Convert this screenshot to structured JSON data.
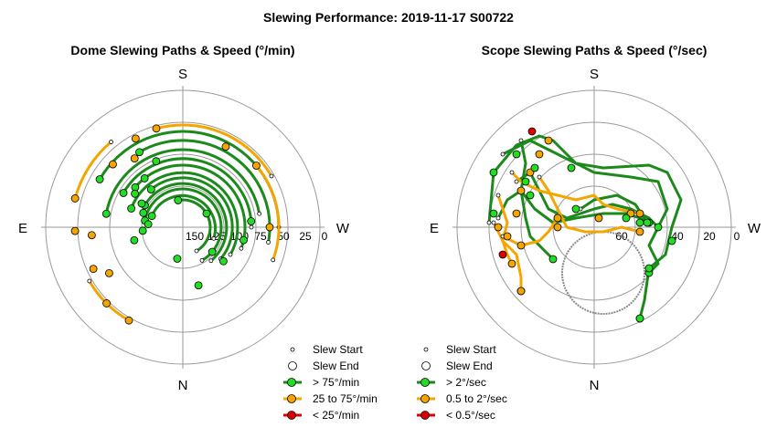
{
  "figure": {
    "title": "Slewing Performance: 2019-11-17 S00722"
  },
  "colors": {
    "fast": "#1b8a1b",
    "fast_fill": "#22dd22",
    "medium": "#f5a500",
    "slow": "#dd0000",
    "grid": "#9a9a9a"
  },
  "chart_data": [
    {
      "type": "polar",
      "title": "Dome Slewing Paths & Speed (°/min)",
      "compass": {
        "top": "S",
        "bottom": "N",
        "left": "E",
        "right": "W"
      },
      "radial_ticks": [
        "150",
        "125",
        "100",
        "75",
        "50",
        "25",
        "0"
      ],
      "legend": {
        "position": "bottom-right",
        "items": [
          {
            "label": "Slew Start",
            "symbol": "start"
          },
          {
            "label": "Slew End",
            "symbol": "end"
          },
          {
            "label": "> 75°/min",
            "symbol": "fast"
          },
          {
            "label": "25 to 75°/min",
            "symbol": "medium"
          },
          {
            "label": "< 25°/min",
            "symbol": "slow"
          }
        ]
      },
      "series": [
        {
          "speed": "fast",
          "kind": "arc",
          "r": 105,
          "a1": 0,
          "a2": -150
        },
        {
          "speed": "fast",
          "kind": "arc",
          "r": 95,
          "a1": 10,
          "a2": -120
        },
        {
          "speed": "fast",
          "kind": "arc",
          "r": 85,
          "a1": -10,
          "a2": -170
        },
        {
          "speed": "fast",
          "kind": "arc",
          "r": 75,
          "a1": 0,
          "a2": -150
        },
        {
          "speed": "fast",
          "kind": "arc",
          "r": 68,
          "a1": 20,
          "a2": -140
        },
        {
          "speed": "fast",
          "kind": "arc",
          "r": 60,
          "a1": 30,
          "a2": -160
        },
        {
          "speed": "fast",
          "kind": "arc",
          "r": 54,
          "a1": 40,
          "a2": -130
        },
        {
          "speed": "fast",
          "kind": "arc",
          "r": 48,
          "a1": 50,
          "a2": -150
        },
        {
          "speed": "fast",
          "kind": "arc",
          "r": 42,
          "a1": 60,
          "a2": -170
        },
        {
          "speed": "fast",
          "kind": "arc",
          "r": 36,
          "a1": 20,
          "a2": -160
        },
        {
          "speed": "fast",
          "kind": "arc",
          "r": 30,
          "a1": 60,
          "a2": -100
        },
        {
          "speed": "medium",
          "kind": "arc",
          "r": 112,
          "a1": -30,
          "a2": -105
        },
        {
          "speed": "medium",
          "kind": "arc",
          "r": 105,
          "a1": 20,
          "a2": -40
        },
        {
          "speed": "medium",
          "kind": "arc",
          "r": 118,
          "a1": 150,
          "a2": 120
        },
        {
          "speed": "medium",
          "kind": "arc",
          "r": 122,
          "a1": -130,
          "a2": -165
        }
      ],
      "points": [
        {
          "speed": "medium",
          "r": 95,
          "a": 0
        },
        {
          "speed": "medium",
          "r": 100,
          "a": -62
        },
        {
          "speed": "medium",
          "r": 110,
          "a": -118
        },
        {
          "speed": "medium",
          "r": 92,
          "a": -125
        },
        {
          "speed": "medium",
          "r": 103,
          "a": -138
        },
        {
          "speed": "medium",
          "r": 118,
          "a": 178
        },
        {
          "speed": "medium",
          "r": 100,
          "a": 175
        },
        {
          "speed": "medium",
          "r": 108,
          "a": 155
        },
        {
          "speed": "medium",
          "r": 118,
          "a": 135
        },
        {
          "speed": "medium",
          "r": 95,
          "a": 148
        },
        {
          "speed": "fast",
          "r": 78,
          "a": -112
        },
        {
          "speed": "fast",
          "r": 68,
          "a": -128
        },
        {
          "speed": "fast",
          "r": 64,
          "a": -145
        },
        {
          "speed": "fast",
          "r": 52,
          "a": -150
        },
        {
          "speed": "fast",
          "r": 46,
          "a": -160
        },
        {
          "speed": "fast",
          "r": 38,
          "a": -175
        },
        {
          "speed": "fast",
          "r": 44,
          "a": 175
        },
        {
          "speed": "fast",
          "r": 55,
          "a": 165
        },
        {
          "speed": "fast",
          "r": 30,
          "a": -30
        },
        {
          "speed": "fast",
          "r": 42,
          "a": 40
        },
        {
          "speed": "fast",
          "r": 66,
          "a": 75
        },
        {
          "speed": "fast",
          "r": 68,
          "a": 12
        },
        {
          "speed": "fast",
          "r": 75,
          "a": -5
        },
        {
          "speed": "fast",
          "r": 35,
          "a": 100
        },
        {
          "speed": "fast",
          "r": 58,
          "a": 40
        }
      ]
    },
    {
      "type": "polar",
      "title": "Scope Slewing Paths & Speed (°/sec)",
      "compass": {
        "top": "S",
        "bottom": "N",
        "left": "E",
        "right": "W"
      },
      "radial_ticks": [
        "60",
        "40",
        "20",
        "0"
      ],
      "legend": {
        "position": "bottom-right",
        "items": [
          {
            "label": "Slew Start",
            "symbol": "start"
          },
          {
            "label": "Slew End",
            "symbol": "end"
          },
          {
            "label": "> 2°/sec",
            "symbol": "fast"
          },
          {
            "label": "0.5 to 2°/sec",
            "symbol": "medium"
          },
          {
            "label": "< 0.5°/sec",
            "symbol": "slow"
          }
        ]
      },
      "series": [
        {
          "speed": "fast",
          "kind": "path",
          "pts": [
            [
              -115,
              -5
            ],
            [
              -110,
              -60
            ],
            [
              -85,
              -90
            ],
            [
              -60,
              -100
            ],
            [
              -45,
              -95
            ],
            [
              -20,
              -70
            ],
            [
              10,
              -65
            ],
            [
              60,
              -68
            ],
            [
              80,
              -60
            ],
            [
              95,
              -30
            ],
            [
              85,
              0
            ],
            [
              78,
              30
            ],
            [
              60,
              45
            ],
            [
              55,
              80
            ],
            [
              50,
              100
            ]
          ]
        },
        {
          "speed": "fast",
          "kind": "path",
          "pts": [
            [
              -100,
              -80
            ],
            [
              -70,
              -95
            ],
            [
              -30,
              -75
            ],
            [
              0,
              -60
            ],
            [
              40,
              -55
            ],
            [
              70,
              -50
            ],
            [
              80,
              -20
            ],
            [
              70,
              0
            ],
            [
              60,
              20
            ],
            [
              70,
              40
            ],
            [
              60,
              50
            ]
          ]
        },
        {
          "speed": "fast",
          "kind": "path",
          "pts": [
            [
              -85,
              -50
            ],
            [
              -70,
              -60
            ],
            [
              -60,
              -40
            ],
            [
              -50,
              -20
            ],
            [
              -30,
              -10
            ],
            [
              0,
              -20
            ],
            [
              20,
              -25
            ],
            [
              40,
              -20
            ],
            [
              60,
              -10
            ],
            [
              70,
              0
            ]
          ]
        },
        {
          "speed": "fast",
          "kind": "path",
          "pts": [
            [
              -105,
              -10
            ],
            [
              -95,
              -30
            ],
            [
              -80,
              -40
            ],
            [
              -75,
              -10
            ],
            [
              -70,
              10
            ],
            [
              -55,
              25
            ],
            [
              -45,
              35
            ]
          ]
        },
        {
          "speed": "fast",
          "kind": "path",
          "pts": [
            [
              -80,
              -95
            ],
            [
              -75,
              -70
            ],
            [
              -80,
              -40
            ],
            [
              -65,
              -20
            ],
            [
              -45,
              -5
            ],
            [
              -20,
              -10
            ],
            [
              10,
              -15
            ],
            [
              35,
              -15
            ],
            [
              50,
              -10
            ],
            [
              60,
              -5
            ]
          ]
        },
        {
          "speed": "fast",
          "kind": "path",
          "pts": [
            [
              -15,
              -20
            ],
            [
              0,
              -30
            ],
            [
              25,
              -35
            ],
            [
              45,
              -25
            ],
            [
              58,
              -5
            ]
          ]
        },
        {
          "speed": "medium",
          "kind": "path",
          "pts": [
            [
              -105,
              -35
            ],
            [
              -95,
              -5
            ],
            [
              -100,
              15
            ],
            [
              -85,
              30
            ],
            [
              -80,
              55
            ],
            [
              -80,
              70
            ]
          ]
        },
        {
          "speed": "medium",
          "kind": "path",
          "pts": [
            [
              -110,
              -5
            ],
            [
              -100,
              15
            ],
            [
              -95,
              30
            ],
            [
              -90,
              40
            ]
          ]
        },
        {
          "speed": "medium",
          "kind": "path",
          "pts": [
            [
              -90,
              -60
            ],
            [
              -80,
              -50
            ],
            [
              -60,
              -40
            ],
            [
              -40,
              -35
            ],
            [
              -20,
              -30
            ],
            [
              0,
              -35
            ],
            [
              10,
              -25
            ],
            [
              25,
              -20
            ],
            [
              50,
              -15
            ]
          ]
        },
        {
          "speed": "medium",
          "kind": "path",
          "pts": [
            [
              -60,
              -55
            ],
            [
              -50,
              -40
            ],
            [
              -40,
              -20
            ],
            [
              -30,
              0
            ],
            [
              -10,
              5
            ],
            [
              10,
              5
            ],
            [
              30,
              0
            ],
            [
              50,
              5
            ]
          ]
        },
        {
          "speed": "medium",
          "kind": "path",
          "pts": [
            [
              -100,
              10
            ],
            [
              -80,
              20
            ],
            [
              -60,
              15
            ],
            [
              -50,
              5
            ],
            [
              -40,
              -10
            ]
          ]
        }
      ],
      "parked_circle": {
        "cx": 10,
        "cy": 50,
        "r": 45
      },
      "points": [
        {
          "speed": "slow",
          "x": -68,
          "y": -105
        },
        {
          "speed": "slow",
          "x": -100,
          "y": 30
        },
        {
          "speed": "medium",
          "x": -80,
          "y": -40
        },
        {
          "speed": "medium",
          "x": -70,
          "y": -60
        },
        {
          "speed": "medium",
          "x": -85,
          "y": -15
        },
        {
          "speed": "medium",
          "x": -105,
          "y": 0
        },
        {
          "speed": "medium",
          "x": -95,
          "y": 10
        },
        {
          "speed": "medium",
          "x": -80,
          "y": 70
        },
        {
          "speed": "medium",
          "x": -60,
          "y": -80
        },
        {
          "speed": "medium",
          "x": -50,
          "y": -95
        },
        {
          "speed": "medium",
          "x": -40,
          "y": 0
        },
        {
          "speed": "medium",
          "x": -80,
          "y": 20
        },
        {
          "speed": "medium",
          "x": 5,
          "y": -10
        },
        {
          "speed": "medium",
          "x": 40,
          "y": -15
        },
        {
          "speed": "fast",
          "x": -85,
          "y": -80
        },
        {
          "speed": "fast",
          "x": -75,
          "y": -50
        },
        {
          "speed": "fast",
          "x": -70,
          "y": -35
        },
        {
          "speed": "fast",
          "x": -65,
          "y": -65
        },
        {
          "speed": "fast",
          "x": -25,
          "y": -65
        },
        {
          "speed": "fast",
          "x": -110,
          "y": -15
        },
        {
          "speed": "fast",
          "x": -20,
          "y": -20
        },
        {
          "speed": "fast",
          "x": 35,
          "y": -10
        },
        {
          "speed": "fast",
          "x": 50,
          "y": -5
        },
        {
          "speed": "fast",
          "x": 85,
          "y": 15
        },
        {
          "speed": "fast",
          "x": 60,
          "y": 45
        },
        {
          "speed": "fast",
          "x": 50,
          "y": 100
        },
        {
          "speed": "fast",
          "x": -110,
          "y": -60
        }
      ]
    }
  ]
}
